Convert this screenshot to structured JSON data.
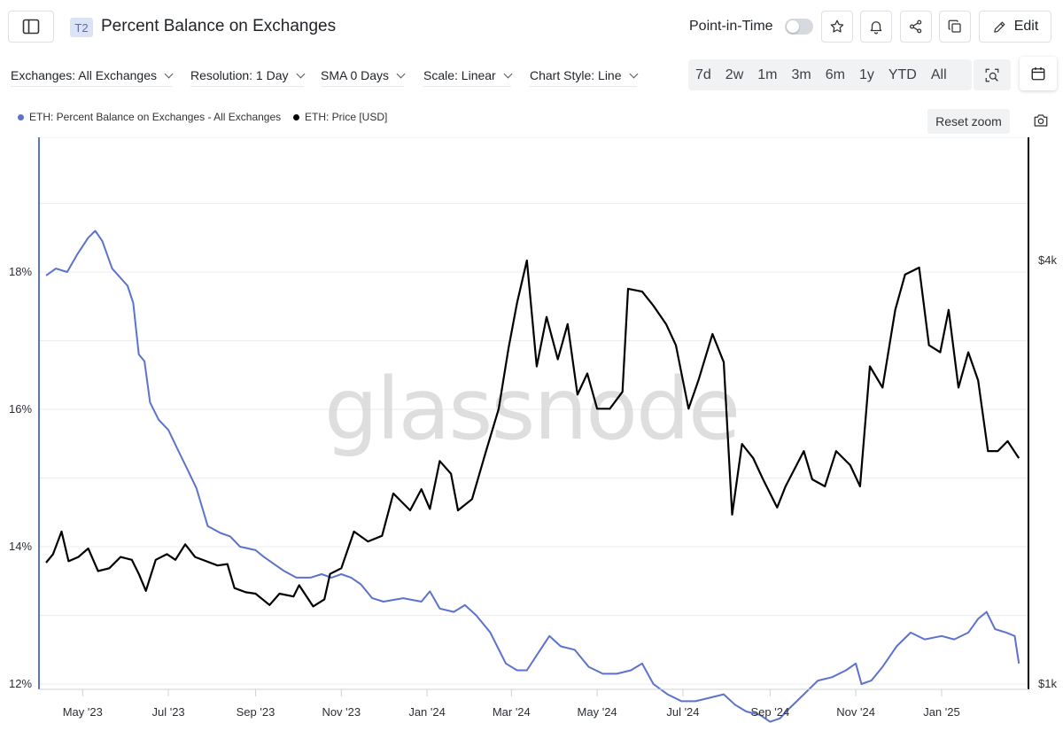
{
  "header": {
    "sidebar_icon": "sidebar-toggle-icon",
    "tier_badge": "T2",
    "title": "Percent Balance on Exchanges",
    "point_in_time_label": "Point-in-Time",
    "point_in_time_enabled": false,
    "actions": [
      {
        "name": "star",
        "icon": "star-icon"
      },
      {
        "name": "alert",
        "icon": "bell-icon"
      },
      {
        "name": "share",
        "icon": "share-icon"
      },
      {
        "name": "copy",
        "icon": "copy-icon"
      }
    ],
    "edit_label": "Edit"
  },
  "filters": {
    "exchanges": "Exchanges: All Exchanges",
    "resolution": "Resolution: 1 Day",
    "sma": "SMA 0 Days",
    "scale": "Scale: Linear",
    "chart_style": "Chart Style: Line"
  },
  "ranges": [
    "7d",
    "2w",
    "1m",
    "3m",
    "6m",
    "1y",
    "YTD",
    "All"
  ],
  "legend": {
    "items": [
      "ETH: Percent Balance on Exchanges - All Exchanges",
      "ETH: Price [USD]"
    ],
    "reset_zoom": "Reset zoom"
  },
  "colors": {
    "balance": "#5c72cc",
    "price": "#000000",
    "grid": "#ececec"
  },
  "chart_data": {
    "type": "line",
    "watermark": "glassnode",
    "x_ticks": [
      "May '23",
      "Jul '23",
      "Sep '23",
      "Nov '23",
      "Jan '24",
      "Mar '24",
      "May '24",
      "Jul '24",
      "Sep '24",
      "Nov '24",
      "Jan '25"
    ],
    "x_tick_dates": [
      "2023-05-01",
      "2023-07-01",
      "2023-09-01",
      "2023-11-01",
      "2024-01-01",
      "2024-03-01",
      "2024-05-01",
      "2024-07-01",
      "2024-09-01",
      "2024-11-01",
      "2025-01-01"
    ],
    "x_range": [
      "2023-04-05",
      "2025-02-28"
    ],
    "y_left": {
      "ticks": [
        12,
        14,
        16,
        18
      ],
      "tick_labels": [
        "12%",
        "14%",
        "16%",
        "18%"
      ],
      "range": [
        12,
        20
      ]
    },
    "y_right": {
      "ticks": [
        1000,
        4000
      ],
      "tick_labels": [
        "$1k",
        "$4k"
      ],
      "range": [
        1000,
        4000
      ]
    },
    "grid": true,
    "legend_position": "top-left",
    "series": [
      {
        "name": "ETH: Percent Balance on Exchanges - All Exchanges",
        "axis": "left",
        "points": [
          [
            "2023-04-05",
            17.95
          ],
          [
            "2023-04-12",
            18.05
          ],
          [
            "2023-04-20",
            18.0
          ],
          [
            "2023-04-27",
            18.25
          ],
          [
            "2023-05-05",
            18.5
          ],
          [
            "2023-05-10",
            18.6
          ],
          [
            "2023-05-15",
            18.45
          ],
          [
            "2023-05-22",
            18.05
          ],
          [
            "2023-06-02",
            17.8
          ],
          [
            "2023-06-06",
            17.55
          ],
          [
            "2023-06-10",
            16.8
          ],
          [
            "2023-06-14",
            16.7
          ],
          [
            "2023-06-18",
            16.1
          ],
          [
            "2023-06-24",
            15.85
          ],
          [
            "2023-07-01",
            15.7
          ],
          [
            "2023-07-08",
            15.4
          ],
          [
            "2023-07-14",
            15.15
          ],
          [
            "2023-07-21",
            14.85
          ],
          [
            "2023-07-29",
            14.3
          ],
          [
            "2023-08-07",
            14.2
          ],
          [
            "2023-08-14",
            14.15
          ],
          [
            "2023-08-21",
            14.0
          ],
          [
            "2023-09-01",
            13.95
          ],
          [
            "2023-09-07",
            13.85
          ],
          [
            "2023-09-14",
            13.75
          ],
          [
            "2023-09-21",
            13.65
          ],
          [
            "2023-09-30",
            13.55
          ],
          [
            "2023-10-10",
            13.55
          ],
          [
            "2023-10-18",
            13.6
          ],
          [
            "2023-10-25",
            13.55
          ],
          [
            "2023-11-01",
            13.6
          ],
          [
            "2023-11-08",
            13.55
          ],
          [
            "2023-11-15",
            13.45
          ],
          [
            "2023-11-23",
            13.25
          ],
          [
            "2023-12-01",
            13.2
          ],
          [
            "2023-12-15",
            13.25
          ],
          [
            "2023-12-28",
            13.2
          ],
          [
            "2024-01-03",
            13.35
          ],
          [
            "2024-01-10",
            13.1
          ],
          [
            "2024-01-20",
            13.05
          ],
          [
            "2024-01-28",
            13.15
          ],
          [
            "2024-02-05",
            13.0
          ],
          [
            "2024-02-15",
            12.75
          ],
          [
            "2024-02-26",
            12.3
          ],
          [
            "2024-03-05",
            12.2
          ],
          [
            "2024-03-12",
            12.2
          ],
          [
            "2024-03-20",
            12.45
          ],
          [
            "2024-03-28",
            12.7
          ],
          [
            "2024-04-05",
            12.55
          ],
          [
            "2024-04-15",
            12.5
          ],
          [
            "2024-04-25",
            12.25
          ],
          [
            "2024-05-05",
            12.15
          ],
          [
            "2024-05-15",
            12.15
          ],
          [
            "2024-05-25",
            12.2
          ],
          [
            "2024-06-02",
            12.3
          ],
          [
            "2024-06-10",
            12.0
          ],
          [
            "2024-06-20",
            11.85
          ],
          [
            "2024-06-30",
            11.75
          ],
          [
            "2024-07-10",
            11.75
          ],
          [
            "2024-07-20",
            11.8
          ],
          [
            "2024-07-30",
            11.85
          ],
          [
            "2024-08-07",
            11.7
          ],
          [
            "2024-08-15",
            11.6
          ],
          [
            "2024-08-25",
            11.55
          ],
          [
            "2024-09-01",
            11.45
          ],
          [
            "2024-09-08",
            11.5
          ],
          [
            "2024-09-15",
            11.65
          ],
          [
            "2024-09-25",
            11.85
          ],
          [
            "2024-10-05",
            12.05
          ],
          [
            "2024-10-15",
            12.1
          ],
          [
            "2024-10-25",
            12.2
          ],
          [
            "2024-11-01",
            12.3
          ],
          [
            "2024-11-05",
            12.0
          ],
          [
            "2024-11-12",
            12.05
          ],
          [
            "2024-11-20",
            12.25
          ],
          [
            "2024-11-30",
            12.55
          ],
          [
            "2024-12-10",
            12.75
          ],
          [
            "2024-12-20",
            12.65
          ],
          [
            "2025-01-01",
            12.7
          ],
          [
            "2025-01-10",
            12.65
          ],
          [
            "2025-01-20",
            12.75
          ],
          [
            "2025-01-27",
            12.95
          ],
          [
            "2025-02-02",
            13.05
          ],
          [
            "2025-02-08",
            12.8
          ],
          [
            "2025-02-16",
            12.75
          ],
          [
            "2025-02-22",
            12.7
          ],
          [
            "2025-02-25",
            12.3
          ]
        ]
      },
      {
        "name": "ETH: Price [USD]",
        "axis": "right",
        "points": [
          [
            "2023-04-05",
            1860
          ],
          [
            "2023-04-10",
            1920
          ],
          [
            "2023-04-16",
            2080
          ],
          [
            "2023-04-21",
            1870
          ],
          [
            "2023-04-28",
            1900
          ],
          [
            "2023-05-05",
            1960
          ],
          [
            "2023-05-12",
            1800
          ],
          [
            "2023-05-20",
            1820
          ],
          [
            "2023-05-28",
            1900
          ],
          [
            "2023-06-05",
            1880
          ],
          [
            "2023-06-10",
            1780
          ],
          [
            "2023-06-15",
            1660
          ],
          [
            "2023-06-22",
            1880
          ],
          [
            "2023-06-30",
            1920
          ],
          [
            "2023-07-06",
            1880
          ],
          [
            "2023-07-13",
            1990
          ],
          [
            "2023-07-20",
            1900
          ],
          [
            "2023-07-28",
            1870
          ],
          [
            "2023-08-05",
            1840
          ],
          [
            "2023-08-12",
            1850
          ],
          [
            "2023-08-17",
            1680
          ],
          [
            "2023-08-25",
            1650
          ],
          [
            "2023-09-01",
            1640
          ],
          [
            "2023-09-11",
            1560
          ],
          [
            "2023-09-18",
            1640
          ],
          [
            "2023-09-28",
            1620
          ],
          [
            "2023-10-02",
            1700
          ],
          [
            "2023-10-12",
            1550
          ],
          [
            "2023-10-20",
            1600
          ],
          [
            "2023-10-24",
            1780
          ],
          [
            "2023-11-01",
            1820
          ],
          [
            "2023-11-10",
            2080
          ],
          [
            "2023-11-20",
            2010
          ],
          [
            "2023-11-30",
            2050
          ],
          [
            "2023-12-08",
            2350
          ],
          [
            "2023-12-20",
            2230
          ],
          [
            "2023-12-28",
            2380
          ],
          [
            "2024-01-03",
            2240
          ],
          [
            "2024-01-10",
            2580
          ],
          [
            "2024-01-18",
            2490
          ],
          [
            "2024-01-23",
            2230
          ],
          [
            "2024-02-02",
            2310
          ],
          [
            "2024-02-12",
            2650
          ],
          [
            "2024-02-21",
            2950
          ],
          [
            "2024-02-28",
            3380
          ],
          [
            "2024-03-05",
            3700
          ],
          [
            "2024-03-12",
            4000
          ],
          [
            "2024-03-19",
            3250
          ],
          [
            "2024-03-26",
            3600
          ],
          [
            "2024-04-03",
            3300
          ],
          [
            "2024-04-10",
            3550
          ],
          [
            "2024-04-17",
            3050
          ],
          [
            "2024-04-24",
            3200
          ],
          [
            "2024-05-01",
            2950
          ],
          [
            "2024-05-10",
            2950
          ],
          [
            "2024-05-19",
            3070
          ],
          [
            "2024-05-23",
            3800
          ],
          [
            "2024-06-02",
            3780
          ],
          [
            "2024-06-10",
            3680
          ],
          [
            "2024-06-19",
            3550
          ],
          [
            "2024-06-26",
            3400
          ],
          [
            "2024-07-05",
            2950
          ],
          [
            "2024-07-12",
            3150
          ],
          [
            "2024-07-22",
            3480
          ],
          [
            "2024-07-30",
            3280
          ],
          [
            "2024-08-05",
            2200
          ],
          [
            "2024-08-12",
            2700
          ],
          [
            "2024-08-20",
            2600
          ],
          [
            "2024-08-27",
            2450
          ],
          [
            "2024-09-06",
            2250
          ],
          [
            "2024-09-12",
            2400
          ],
          [
            "2024-09-25",
            2650
          ],
          [
            "2024-10-01",
            2450
          ],
          [
            "2024-10-10",
            2400
          ],
          [
            "2024-10-18",
            2650
          ],
          [
            "2024-10-28",
            2550
          ],
          [
            "2024-11-04",
            2400
          ],
          [
            "2024-11-11",
            3250
          ],
          [
            "2024-11-20",
            3100
          ],
          [
            "2024-11-29",
            3650
          ],
          [
            "2024-12-06",
            3900
          ],
          [
            "2024-12-16",
            3950
          ],
          [
            "2024-12-23",
            3400
          ],
          [
            "2024-12-31",
            3350
          ],
          [
            "2025-01-06",
            3650
          ],
          [
            "2025-01-13",
            3100
          ],
          [
            "2025-01-20",
            3350
          ],
          [
            "2025-01-27",
            3150
          ],
          [
            "2025-02-03",
            2650
          ],
          [
            "2025-02-10",
            2650
          ],
          [
            "2025-02-17",
            2720
          ],
          [
            "2025-02-25",
            2600
          ]
        ]
      }
    ]
  }
}
